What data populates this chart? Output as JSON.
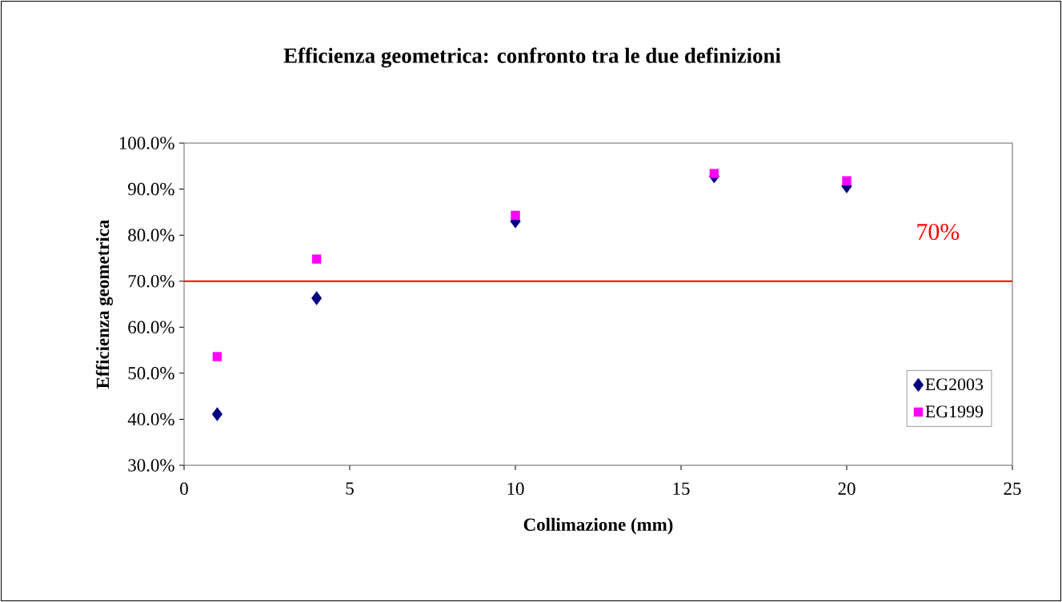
{
  "chart_data": {
    "type": "scatter",
    "title": "Efficienza geometrica: confronto tra le due definizioni",
    "xlabel": "Collimazione (mm)",
    "ylabel": "Efficienza geometrica",
    "x": [
      1,
      4,
      10,
      16,
      20
    ],
    "series": [
      {
        "name": "EG2003",
        "color": "#000080",
        "marker": "diamond",
        "values": [
          0.411,
          0.663,
          0.83,
          0.928,
          0.906
        ]
      },
      {
        "name": "EG1999",
        "color": "#ff00ff",
        "marker": "square",
        "values": [
          0.536,
          0.748,
          0.843,
          0.934,
          0.918
        ]
      }
    ],
    "xlim": [
      0,
      25
    ],
    "xticks": [
      0,
      5,
      10,
      15,
      20,
      25
    ],
    "ylim": [
      0.3,
      1.0
    ],
    "yticks": [
      {
        "value": 0.3,
        "label": "30.0%"
      },
      {
        "value": 0.4,
        "label": "40.0%"
      },
      {
        "value": 0.5,
        "label": "50.0%"
      },
      {
        "value": 0.6,
        "label": "60.0%"
      },
      {
        "value": 0.7,
        "label": "70.0%"
      },
      {
        "value": 0.8,
        "label": "80.0%"
      },
      {
        "value": 0.9,
        "label": "90.0%"
      },
      {
        "value": 1.0,
        "label": "100.0%"
      }
    ],
    "ref_lines": [
      {
        "axis": "y",
        "value": 0.7,
        "label": "70%",
        "color": "#ff0000"
      }
    ],
    "legend": "right"
  }
}
